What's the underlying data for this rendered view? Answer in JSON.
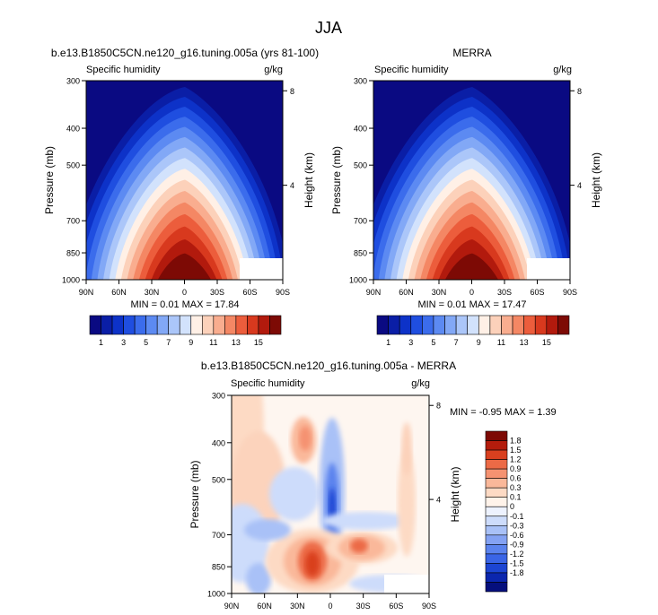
{
  "figure_title": "JJA",
  "colors": {
    "seq": [
      "#0a0a82",
      "#0a1ea6",
      "#0d32c8",
      "#1f4ee0",
      "#3b6cec",
      "#5c8af2",
      "#82a8f6",
      "#abc6f9",
      "#d2e2fc",
      "#fff0e6",
      "#fcd1ba",
      "#f9ad8f",
      "#f48764",
      "#ec5d3c",
      "#d8391e",
      "#b21a0d",
      "#7d0a05"
    ],
    "div": [
      "#050f7d",
      "#0b26ae",
      "#1c45d3",
      "#3a65e6",
      "#5b83ee",
      "#84a2f3",
      "#a9c1f7",
      "#cddcfb",
      "#edf2fe",
      "#fff3ea",
      "#fddac4",
      "#fab89a",
      "#f59271",
      "#ec6a46",
      "#d9401f",
      "#b41c0c",
      "#7d0904"
    ]
  },
  "panels": [
    {
      "title": "b.e13.B1850C5CN.ne120_g16.tuning.005a (yrs 81-100)",
      "left_label": "Specific humidity",
      "right_label": "g/kg",
      "minmax": "MIN =  0.01  MAX =  17.84",
      "colorbar_ticks": [
        "1",
        "3",
        "5",
        "7",
        "9",
        "11",
        "13",
        "15"
      ]
    },
    {
      "title": "MERRA",
      "left_label": "Specific humidity",
      "right_label": "g/kg",
      "minmax": "MIN =  0.01  MAX =  17.47",
      "colorbar_ticks": [
        "1",
        "3",
        "5",
        "7",
        "9",
        "11",
        "13",
        "15"
      ]
    },
    {
      "title": "b.e13.B1850C5CN.ne120_g16.tuning.005a - MERRA",
      "left_label": "Specific humidity",
      "right_label": "g/kg",
      "minmax": "MIN = -0.95  MAX =  1.39",
      "colorbar_ticks": [
        "1.8",
        "1.5",
        "1.2",
        "0.9",
        "0.6",
        "0.3",
        "0.1",
        "0",
        "-0.1",
        "-0.3",
        "-0.6",
        "-0.9",
        "-1.2",
        "-1.5",
        "-1.8"
      ]
    }
  ],
  "chart_data": [
    {
      "type": "heatmap",
      "title": "b.e13.B1850C5CN.ne120_g16.tuning.005a (yrs 81-100)",
      "variable": "Specific humidity",
      "units": "g/kg",
      "xlabel": "",
      "ylabel": "Pressure (mb)",
      "y2label": "Height (km)",
      "x_ticks": [
        "90N",
        "60N",
        "30N",
        "0",
        "30S",
        "60S",
        "90S"
      ],
      "y_ticks": [
        "300",
        "400",
        "500",
        "700",
        "850",
        "1000"
      ],
      "y2_ticks": [
        "8",
        "4"
      ],
      "y_scale": "log",
      "ylim": [
        1000,
        300
      ],
      "contour_levels": [
        1,
        2,
        3,
        4,
        5,
        6,
        7,
        8,
        9,
        10,
        11,
        12,
        13,
        14,
        15,
        16
      ],
      "min": 0.01,
      "max": 17.84
    },
    {
      "type": "heatmap",
      "title": "MERRA",
      "variable": "Specific humidity",
      "units": "g/kg",
      "xlabel": "",
      "ylabel": "Pressure (mb)",
      "y2label": "Height (km)",
      "x_ticks": [
        "90N",
        "60N",
        "30N",
        "0",
        "30S",
        "60S",
        "90S"
      ],
      "y_ticks": [
        "300",
        "400",
        "500",
        "700",
        "850",
        "1000"
      ],
      "y2_ticks": [
        "8",
        "4"
      ],
      "y_scale": "log",
      "ylim": [
        1000,
        300
      ],
      "contour_levels": [
        1,
        2,
        3,
        4,
        5,
        6,
        7,
        8,
        9,
        10,
        11,
        12,
        13,
        14,
        15,
        16
      ],
      "min": 0.01,
      "max": 17.47
    },
    {
      "type": "heatmap",
      "title": "b.e13.B1850C5CN.ne120_g16.tuning.005a - MERRA",
      "variable": "Specific humidity",
      "units": "g/kg",
      "xlabel": "",
      "ylabel": "Pressure (mb)",
      "y2label": "Height (km)",
      "x_ticks": [
        "90N",
        "60N",
        "30N",
        "0",
        "30S",
        "60S",
        "90S"
      ],
      "y_ticks": [
        "300",
        "400",
        "500",
        "700",
        "850",
        "1000"
      ],
      "y2_ticks": [
        "8",
        "4"
      ],
      "y_scale": "log",
      "ylim": [
        1000,
        300
      ],
      "contour_levels": [
        -1.8,
        -1.5,
        -1.2,
        -0.9,
        -0.6,
        -0.3,
        -0.1,
        0,
        0.1,
        0.3,
        0.6,
        0.9,
        1.2,
        1.5,
        1.8
      ],
      "min": -0.95,
      "max": 1.39
    }
  ]
}
